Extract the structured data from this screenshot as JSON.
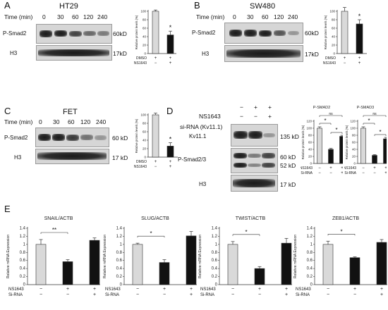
{
  "panels": {
    "A": {
      "letter": "A",
      "title": "HT29",
      "time_label": "Time (min)",
      "times": [
        "0",
        "30",
        "60",
        "120",
        "240"
      ],
      "rows": [
        {
          "name": "P-Smad2",
          "kd": "60kD"
        },
        {
          "name": "H3",
          "kd": "17kD"
        }
      ]
    },
    "B": {
      "letter": "B",
      "title": "SW480",
      "time_label": "Time (min)",
      "times": [
        "0",
        "30",
        "60",
        "120",
        "240"
      ],
      "rows": [
        {
          "name": "P-Smad2",
          "kd": "60kD"
        },
        {
          "name": "H3",
          "kd": "17kD"
        }
      ]
    },
    "C": {
      "letter": "C",
      "title": "FET",
      "time_label": "Time (min)",
      "times": [
        "0",
        "30",
        "60",
        "120",
        "240"
      ],
      "rows": [
        {
          "name": "P-Smad2",
          "kd": "60 kD"
        },
        {
          "name": "H3",
          "kd": "17 kD"
        }
      ]
    },
    "D": {
      "letter": "D",
      "treat_labels": [
        "NS1643",
        "si-RNA (Kv11.1)"
      ],
      "treat_marks": [
        [
          "−",
          "+",
          "+"
        ],
        [
          "−",
          "−",
          "+"
        ]
      ],
      "rows": [
        {
          "name": "Kv11.1",
          "kd": "135 kD"
        },
        {
          "name": "P-Smad2/3",
          "kd": "60 kD",
          "kd2": "52 kD"
        },
        {
          "name": "H3",
          "kd": "17 kD"
        }
      ]
    },
    "E": {
      "letter": "E"
    }
  },
  "chart_data": [
    {
      "id": "A-bar",
      "type": "bar",
      "title": "",
      "ylabel": "Relative protein levels (%)",
      "ylim": [
        0,
        100
      ],
      "yticks": [
        0,
        20,
        40,
        60,
        80,
        100
      ],
      "values": [
        100,
        44
      ],
      "errors": [
        3,
        9
      ],
      "colors": [
        "#d9d9d9",
        "#111111"
      ],
      "cond_labels": [
        "DMSO",
        "NS1643"
      ],
      "cond_marks": [
        [
          "+",
          "+"
        ],
        [
          "−",
          "+"
        ]
      ],
      "sig": [
        {
          "text": "*",
          "over": 1
        }
      ]
    },
    {
      "id": "B-bar",
      "type": "bar",
      "title": "",
      "ylabel": "Relative protein levels (%)",
      "ylim": [
        0,
        100
      ],
      "yticks": [
        0,
        20,
        40,
        60,
        80,
        100
      ],
      "values": [
        100,
        70
      ],
      "errors": [
        9,
        10
      ],
      "colors": [
        "#d9d9d9",
        "#111111"
      ],
      "cond_labels": [
        "DMSO",
        "NS1643"
      ],
      "cond_marks": [
        [
          "+",
          "+"
        ],
        [
          "−",
          "+"
        ]
      ],
      "sig": [
        {
          "text": "*",
          "over": 1
        }
      ]
    },
    {
      "id": "C-bar",
      "type": "bar",
      "title": "",
      "ylabel": "Relative protein levels (%)",
      "ylim": [
        0,
        100
      ],
      "yticks": [
        0,
        20,
        40,
        60,
        80,
        100
      ],
      "values": [
        100,
        26
      ],
      "errors": [
        4,
        8
      ],
      "colors": [
        "#d9d9d9",
        "#111111"
      ],
      "cond_labels": [
        "DMSO",
        "NS1643"
      ],
      "cond_marks": [
        [
          "+",
          "+"
        ],
        [
          "−",
          "+"
        ]
      ],
      "sig": [
        {
          "text": "*",
          "over": 1
        }
      ]
    },
    {
      "id": "D-smad2",
      "type": "bar",
      "title": "P-SMAD2",
      "ylabel": "Relative protein levels (%)",
      "ylim": [
        0,
        120
      ],
      "yticks": [
        0,
        20,
        40,
        60,
        80,
        100,
        120
      ],
      "values": [
        100,
        40,
        77
      ],
      "errors": [
        4,
        3,
        3
      ],
      "colors": [
        "#d9d9d9",
        "#111111",
        "#111111"
      ],
      "cond_labels": [
        "NS1643",
        "Si-RNA"
      ],
      "cond_marks": [
        [
          "−",
          "+",
          "+"
        ],
        [
          "−",
          "−",
          "+"
        ]
      ],
      "sig": [
        {
          "text": "ns",
          "from": 0,
          "to": 2
        },
        {
          "text": "*",
          "from": 0,
          "to": 1
        },
        {
          "text": "*",
          "from": 1,
          "to": 2
        }
      ]
    },
    {
      "id": "D-smad3",
      "type": "bar",
      "title": "P-SMAD3",
      "ylabel": "Relative protein levels (%)",
      "ylim": [
        0,
        120
      ],
      "yticks": [
        0,
        20,
        40,
        60,
        80,
        100,
        120
      ],
      "values": [
        100,
        23,
        70
      ],
      "errors": [
        4,
        2,
        4
      ],
      "colors": [
        "#d9d9d9",
        "#111111",
        "#111111"
      ],
      "cond_labels": [
        "NS1643",
        "Si-RNA"
      ],
      "cond_marks": [
        [
          "−",
          "+",
          "+"
        ],
        [
          "−",
          "−",
          "+"
        ]
      ],
      "sig": [
        {
          "text": "ns",
          "from": 0,
          "to": 2
        },
        {
          "text": "*",
          "from": 0,
          "to": 1
        },
        {
          "text": "*",
          "from": 1,
          "to": 2
        }
      ]
    },
    {
      "id": "E-snail",
      "type": "bar",
      "title": "SNAIL/ACTB",
      "ylabel": "Relative mRNA Expression",
      "ylim": [
        0,
        1.4
      ],
      "yticks": [
        0,
        0.2,
        0.4,
        0.6,
        0.8,
        1,
        1.2,
        1.4
      ],
      "values": [
        1.0,
        0.57,
        1.1
      ],
      "errors": [
        0.12,
        0.05,
        0.06
      ],
      "colors": [
        "#d9d9d9",
        "#111111",
        "#111111"
      ],
      "cond_labels": [
        "NS1643",
        "Si-RNA"
      ],
      "cond_marks": [
        [
          "−",
          "+",
          "+"
        ],
        [
          "−",
          "−",
          "+"
        ]
      ],
      "sig": [
        {
          "text": "**",
          "from": 0,
          "to": 1
        }
      ]
    },
    {
      "id": "E-slug",
      "type": "bar",
      "title": "SLUG/ACTB",
      "ylabel": "Relative mRNA Expression",
      "ylim": [
        0,
        1.4
      ],
      "yticks": [
        0,
        0.2,
        0.4,
        0.6,
        0.8,
        1,
        1.2,
        1.4
      ],
      "values": [
        1.0,
        0.55,
        1.21
      ],
      "errors": [
        0.03,
        0.07,
        0.11
      ],
      "colors": [
        "#d9d9d9",
        "#111111",
        "#111111"
      ],
      "cond_labels": [
        "NS1643",
        "Si-RNA"
      ],
      "cond_marks": [
        [
          "−",
          "+",
          "+"
        ],
        [
          "−",
          "−",
          "+"
        ]
      ],
      "sig": [
        {
          "text": "*",
          "from": 0,
          "to": 1
        }
      ]
    },
    {
      "id": "E-twist",
      "type": "bar",
      "title": "TWIST/ACTB",
      "ylabel": "Relative mRNA Expression",
      "ylim": [
        0,
        1.4
      ],
      "yticks": [
        0,
        0.2,
        0.4,
        0.6,
        0.8,
        1,
        1.2,
        1.4
      ],
      "values": [
        1.0,
        0.4,
        1.03
      ],
      "errors": [
        0.07,
        0.05,
        0.12
      ],
      "colors": [
        "#d9d9d9",
        "#111111",
        "#111111"
      ],
      "cond_labels": [
        "NS1643",
        "Si-RNA"
      ],
      "cond_marks": [
        [
          "−",
          "+",
          "+"
        ],
        [
          "−",
          "−",
          "+"
        ]
      ],
      "sig": [
        {
          "text": "*",
          "from": 0,
          "to": 1
        }
      ]
    },
    {
      "id": "E-zeb1",
      "type": "bar",
      "title": "ZEB1/ACTB",
      "ylabel": "Relative mRNA Expression",
      "ylim": [
        0,
        1.4
      ],
      "yticks": [
        0,
        0.2,
        0.4,
        0.6,
        0.8,
        1,
        1.2,
        1.4
      ],
      "values": [
        1.0,
        0.67,
        1.05
      ],
      "errors": [
        0.08,
        0.02,
        0.07
      ],
      "colors": [
        "#d9d9d9",
        "#111111",
        "#111111"
      ],
      "cond_labels": [
        "NS1643",
        "Si-RNA"
      ],
      "cond_marks": [
        [
          "−",
          "+",
          "+"
        ],
        [
          "−",
          "−",
          "+"
        ]
      ],
      "sig": [
        {
          "text": "*",
          "from": 0,
          "to": 1
        }
      ]
    }
  ]
}
